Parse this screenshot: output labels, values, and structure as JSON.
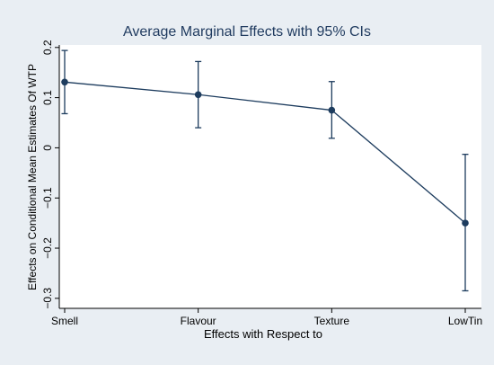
{
  "chart_data": {
    "type": "line",
    "title": "Average Marginal Effects with 95% CIs",
    "xlabel": "Effects with Respect to",
    "ylabel": "Effects on Conditional Mean Estimates Of WTP",
    "categories": [
      "Smell",
      "Flavour",
      "Texture",
      "LowTin"
    ],
    "series": [
      {
        "values": [
          0.131,
          0.106,
          0.075,
          -0.15
        ],
        "ci_lower": [
          0.068,
          0.04,
          0.019,
          -0.285
        ],
        "ci_upper": [
          0.194,
          0.172,
          0.132,
          -0.013
        ]
      }
    ],
    "ylim": [
      -0.32,
      0.205
    ],
    "yticks": [
      -0.3,
      -0.2,
      -0.1,
      0,
      0.1,
      0.2
    ],
    "ytick_labels": [
      "−0.3",
      "−0.2",
      "−0.1",
      "0",
      "0.1",
      "0.2"
    ],
    "grid": false,
    "colors": {
      "outer_background": "#e9eef3",
      "plot_background": "#ffffff",
      "line": "#1d3c5e",
      "title": "#1f3a5f",
      "axis": "#000000"
    }
  }
}
